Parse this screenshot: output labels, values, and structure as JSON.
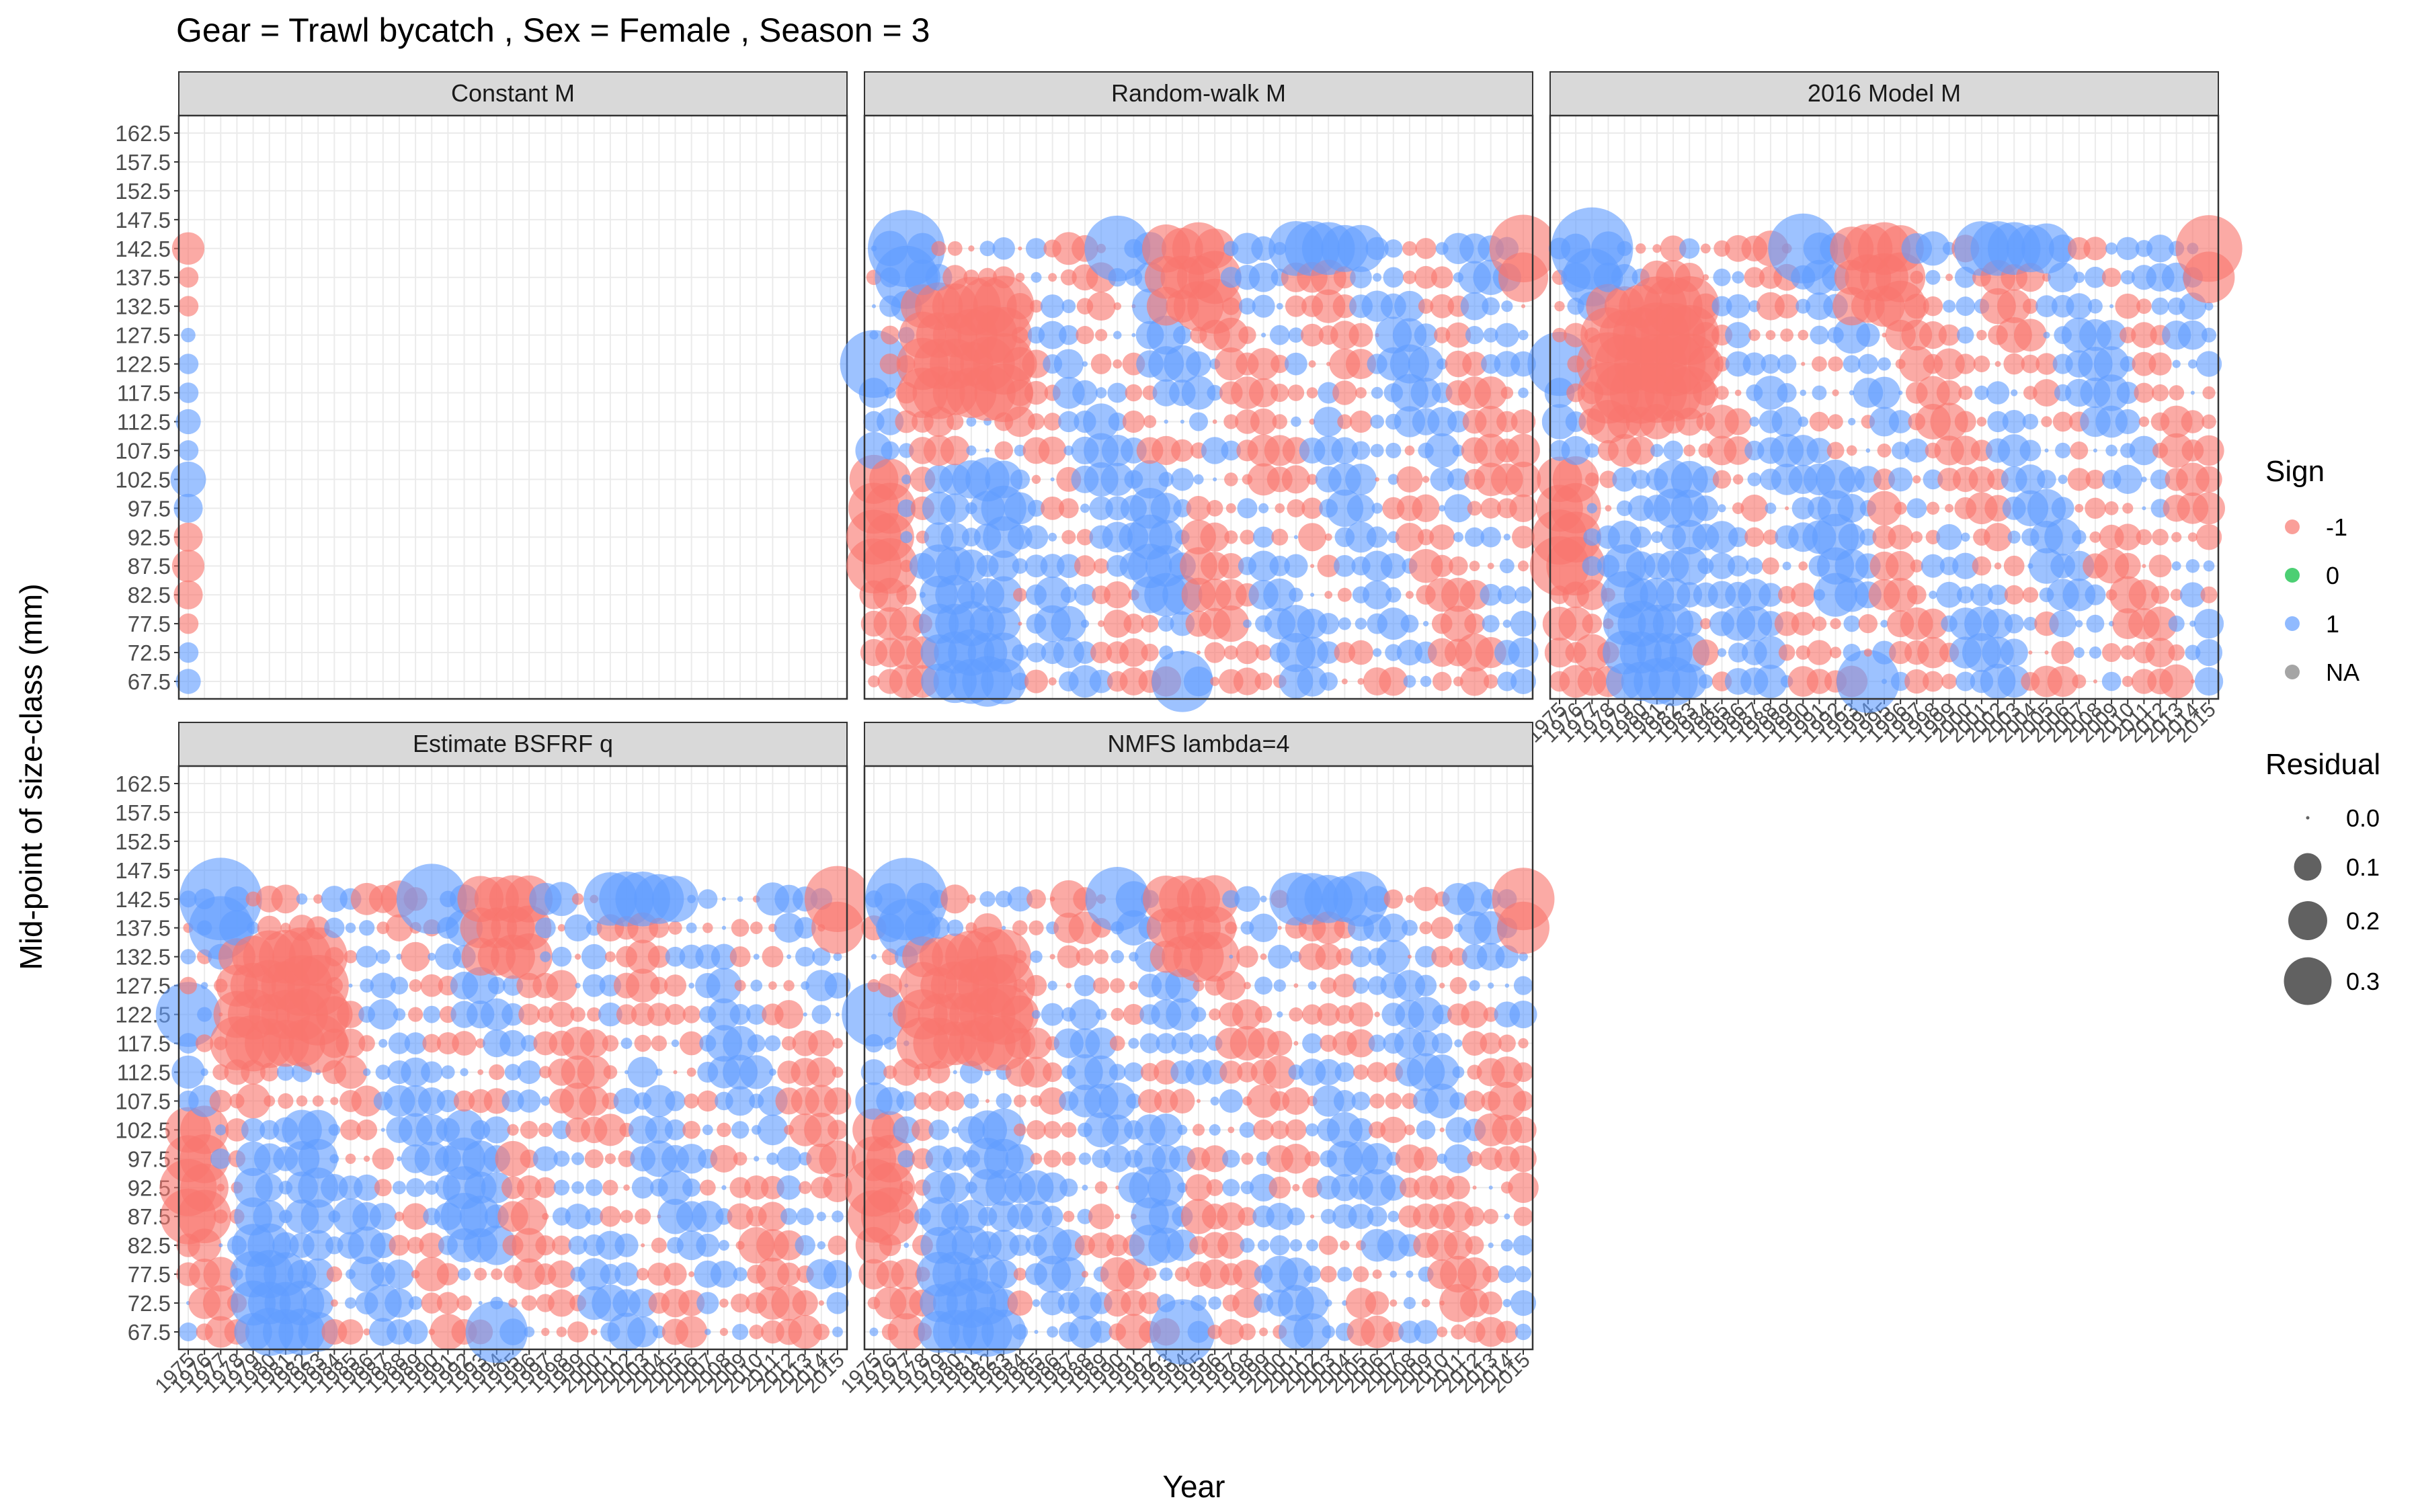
{
  "chart_data": {
    "type": "scatter",
    "subtype": "bubble-residual-grid",
    "title": "Gear = Trawl bycatch , Sex = Female , Season = 3",
    "xlabel": "Year",
    "ylabel": "Mid-point of size-class (mm)",
    "x_range": [
      1975,
      2015
    ],
    "y_ticks": [
      67.5,
      72.5,
      77.5,
      82.5,
      87.5,
      92.5,
      97.5,
      102.5,
      107.5,
      112.5,
      117.5,
      122.5,
      127.5,
      132.5,
      137.5,
      142.5,
      147.5,
      152.5,
      157.5,
      162.5
    ],
    "grid": true,
    "legend_position": "right",
    "colors": {
      "neg": "#F8766D",
      "zero": "#00BA38",
      "pos": "#619CFF",
      "na": "#7F7F7F"
    },
    "legend_sign": {
      "title": "Sign",
      "items": [
        {
          "label": "-1",
          "color": "#F8766D"
        },
        {
          "label": "0",
          "color": "#00BA38"
        },
        {
          "label": "1",
          "color": "#619CFF"
        },
        {
          "label": "NA",
          "color": "#7F7F7F"
        }
      ]
    },
    "legend_residual": {
      "title": "Residual",
      "items": [
        {
          "label": "0.0",
          "value": 0.0
        },
        {
          "label": "0.1",
          "value": 0.1
        },
        {
          "label": "0.2",
          "value": 0.2
        },
        {
          "label": "0.3",
          "value": 0.3
        }
      ]
    },
    "panels": [
      {
        "strip": "Constant M",
        "has_x_axis": false,
        "years": [
          1975
        ]
      },
      {
        "strip": "Random-walk M",
        "has_x_axis": false,
        "years": "1975-2015"
      },
      {
        "strip": "2016 Model M",
        "has_x_axis": true,
        "years": "1975-2015"
      },
      {
        "strip": "Estimate BSFRF q",
        "has_x_axis": true,
        "years": "1975-2015"
      },
      {
        "strip": "NMFS lambda=4",
        "has_x_axis": true,
        "years": "1975-2015"
      }
    ],
    "series_note": "Residuals for size classes 67.5-142.5 mm; 147.5-162.5 mm have no data.",
    "sample_residuals": {
      "constant_m_1975": [
        {
          "size": 67.5,
          "residual": 0.03
        },
        {
          "size": 72.5,
          "residual": 0.02
        },
        {
          "size": 77.5,
          "residual": -0.02
        },
        {
          "size": 82.5,
          "residual": -0.04
        },
        {
          "size": 87.5,
          "residual": -0.05
        },
        {
          "size": 92.5,
          "residual": -0.04
        },
        {
          "size": 97.5,
          "residual": 0.04
        },
        {
          "size": 102.5,
          "residual": 0.06
        },
        {
          "size": 107.5,
          "residual": 0.02
        },
        {
          "size": 112.5,
          "residual": 0.03
        },
        {
          "size": 117.5,
          "residual": 0.02
        },
        {
          "size": 122.5,
          "residual": 0.02
        },
        {
          "size": 127.5,
          "residual": 0.01
        },
        {
          "size": 132.5,
          "residual": -0.02
        },
        {
          "size": 137.5,
          "residual": -0.02
        },
        {
          "size": 142.5,
          "residual": -0.05
        }
      ]
    }
  }
}
